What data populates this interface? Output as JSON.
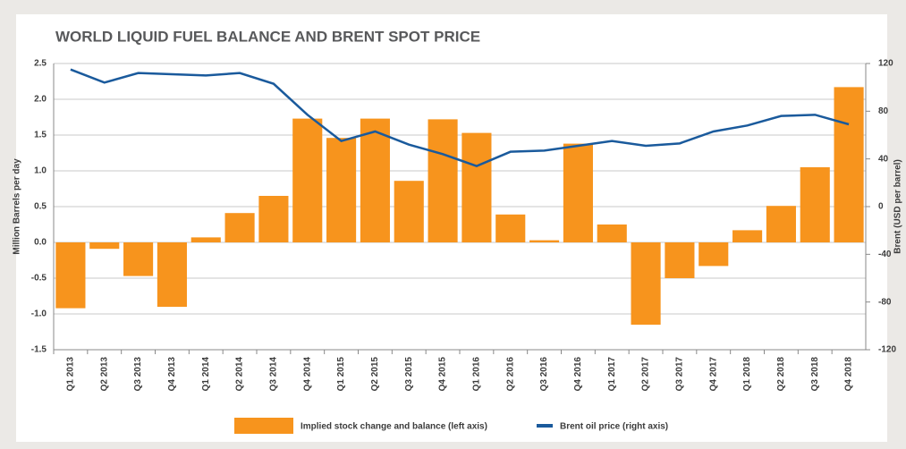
{
  "chart_data": {
    "type": "bar+line",
    "title": "WORLD LIQUID FUEL BALANCE AND BRENT SPOT PRICE",
    "y_label": "Million Barrels per day",
    "y2_label": "Brent (USD per barrel)",
    "categories": [
      "Q1 2013",
      "Q2 2013",
      "Q3 2013",
      "Q4 2013",
      "Q1 2014",
      "Q2 2014",
      "Q3 2014",
      "Q4 2014",
      "Q1 2015",
      "Q2 2015",
      "Q3 2015",
      "Q4 2015",
      "Q1 2016",
      "Q2 2016",
      "Q3 2016",
      "Q4 2016",
      "Q1 2017",
      "Q2 2017",
      "Q3 2017",
      "Q4 2017",
      "Q1 2018",
      "Q2 2018",
      "Q3 2018",
      "Q4 2018"
    ],
    "series": [
      {
        "name": "Implied stock change and balance (left axis)",
        "type": "bar",
        "color": "#f7941d",
        "values": [
          -0.92,
          -0.09,
          -0.47,
          -0.9,
          0.07,
          0.41,
          0.65,
          1.73,
          1.46,
          1.73,
          0.86,
          1.72,
          1.53,
          0.39,
          0.03,
          1.38,
          0.25,
          -1.15,
          -0.5,
          -0.33,
          0.17,
          0.51,
          1.05,
          2.17
        ]
      },
      {
        "name": "Brent oil price (right axis)",
        "type": "line",
        "axis": "y2",
        "color": "#1a5a9c",
        "values": [
          115,
          104,
          112,
          111,
          110,
          112,
          103,
          77,
          55,
          63,
          52,
          44,
          34,
          46,
          47,
          51,
          55,
          51,
          53,
          63,
          68,
          76,
          77,
          69
        ]
      }
    ],
    "ylim": [
      -1.5,
      2.5
    ],
    "yticks": [
      -1.5,
      -0.5,
      {
        "value": -1,
        "label": "-1.0"
      },
      {
        "value": 0,
        "label": "0.0"
      },
      0.5,
      {
        "value": 1,
        "label": "1.0"
      },
      1.5,
      {
        "value": 2,
        "label": "2.0"
      },
      2.5
    ],
    "y2lim": [
      -120,
      120
    ],
    "y2ticks": [
      -120,
      -80,
      -40,
      0,
      40,
      80,
      120
    ],
    "grid": true
  }
}
